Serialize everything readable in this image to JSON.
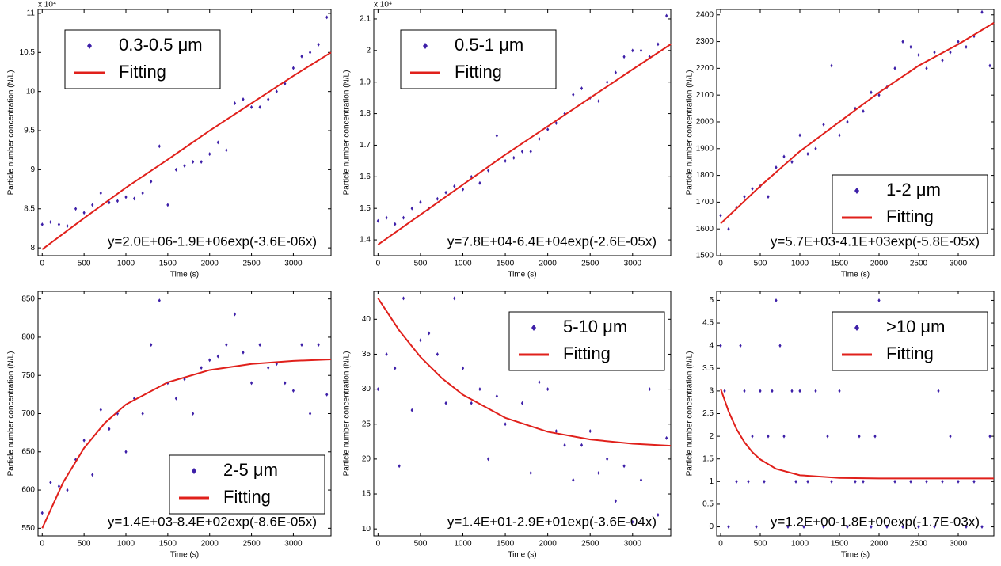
{
  "chart_data": [
    {
      "type": "scatter",
      "xlabel": "Time (s)",
      "ylabel": "Particle number concentration (N/L)",
      "multiplier": "x 10⁴",
      "annotation": "y=2.0E+06-1.9E+06exp(-3.6E-06x)",
      "legend": "upper left",
      "xlim": [
        -50,
        3450
      ],
      "ylim": [
        7.9,
        11.05
      ],
      "xticks": [
        0,
        500,
        1000,
        1500,
        2000,
        2500,
        3000
      ],
      "yticks": [
        8,
        8.5,
        9,
        9.5,
        10,
        10.5,
        11
      ],
      "series": [
        {
          "name": "0.3-0.5 μm",
          "type": "scatter",
          "color": "#3d1fa8",
          "x": [
            0,
            100,
            200,
            300,
            400,
            500,
            600,
            700,
            800,
            900,
            1000,
            1100,
            1200,
            1300,
            1400,
            1500,
            1600,
            1700,
            1800,
            1900,
            2000,
            2100,
            2200,
            2300,
            2400,
            2500,
            2600,
            2700,
            2800,
            2900,
            3000,
            3100,
            3200,
            3300,
            3400
          ],
          "values": [
            8.3,
            8.33,
            8.3,
            8.28,
            8.5,
            8.45,
            8.55,
            8.7,
            8.58,
            8.6,
            8.65,
            8.63,
            8.7,
            8.85,
            9.3,
            8.55,
            9.0,
            9.05,
            9.1,
            9.1,
            9.2,
            9.35,
            9.25,
            9.85,
            9.9,
            9.8,
            9.8,
            9.9,
            10.0,
            10.1,
            10.3,
            10.45,
            10.5,
            10.6,
            10.95
          ]
        },
        {
          "name": "Fitting",
          "type": "line",
          "color": "#e0201b",
          "x": [
            0,
            500,
            1000,
            1500,
            2000,
            2500,
            3000,
            3450
          ],
          "values": [
            7.98,
            8.38,
            8.77,
            9.13,
            9.5,
            9.85,
            10.2,
            10.5
          ]
        }
      ]
    },
    {
      "type": "scatter",
      "xlabel": "Time (s)",
      "ylabel": "Particle number concentration (N/L)",
      "multiplier": "x 10⁴",
      "annotation": "y=7.8E+04-6.4E+04exp(-2.6E-05x)",
      "legend": "upper left",
      "xlim": [
        -50,
        3450
      ],
      "ylim": [
        1.35,
        2.13
      ],
      "xticks": [
        0,
        500,
        1000,
        1500,
        2000,
        2500,
        3000
      ],
      "yticks": [
        1.4,
        1.5,
        1.6,
        1.7,
        1.8,
        1.9,
        2,
        2.1
      ],
      "series": [
        {
          "name": "0.5-1 μm",
          "type": "scatter",
          "color": "#3d1fa8",
          "x": [
            0,
            100,
            200,
            300,
            400,
            500,
            600,
            700,
            800,
            900,
            1000,
            1100,
            1200,
            1300,
            1400,
            1500,
            1600,
            1700,
            1800,
            1900,
            2000,
            2100,
            2200,
            2300,
            2400,
            2500,
            2600,
            2700,
            2800,
            2900,
            3000,
            3100,
            3200,
            3300,
            3400
          ],
          "values": [
            1.46,
            1.47,
            1.45,
            1.47,
            1.5,
            1.52,
            1.5,
            1.53,
            1.55,
            1.57,
            1.56,
            1.6,
            1.58,
            1.62,
            1.73,
            1.65,
            1.66,
            1.68,
            1.68,
            1.72,
            1.75,
            1.77,
            1.8,
            1.86,
            1.88,
            1.85,
            1.84,
            1.9,
            1.93,
            1.98,
            2.0,
            2.0,
            1.98,
            2.02,
            2.11
          ]
        },
        {
          "name": "Fitting",
          "type": "line",
          "color": "#e0201b",
          "x": [
            0,
            500,
            1000,
            1500,
            2000,
            2500,
            3000,
            3450
          ],
          "values": [
            1.385,
            1.48,
            1.575,
            1.67,
            1.76,
            1.85,
            1.94,
            2.02
          ]
        }
      ]
    },
    {
      "type": "scatter",
      "xlabel": "Time (s)",
      "ylabel": "Particle number concentration (N/L)",
      "annotation": "y=5.7E+03-4.1E+03exp(-5.8E-05x)",
      "legend": "lower right",
      "xlim": [
        -50,
        3450
      ],
      "ylim": [
        1500,
        2420
      ],
      "xticks": [
        0,
        500,
        1000,
        1500,
        2000,
        2500,
        3000
      ],
      "yticks": [
        1500,
        1600,
        1700,
        1800,
        1900,
        2000,
        2100,
        2200,
        2300,
        2400
      ],
      "series": [
        {
          "name": "1-2 μm",
          "type": "scatter",
          "color": "#3d1fa8",
          "x": [
            0,
            100,
            200,
            300,
            400,
            500,
            600,
            700,
            800,
            900,
            1000,
            1100,
            1200,
            1300,
            1400,
            1500,
            1600,
            1700,
            1800,
            1900,
            2000,
            2100,
            2200,
            2300,
            2400,
            2500,
            2600,
            2700,
            2800,
            2900,
            3000,
            3100,
            3200,
            3300,
            3400
          ],
          "values": [
            1650,
            1600,
            1680,
            1720,
            1750,
            1760,
            1720,
            1830,
            1870,
            1850,
            1950,
            1880,
            1900,
            1990,
            2210,
            1950,
            2000,
            2050,
            2040,
            2110,
            2100,
            2130,
            2200,
            2300,
            2280,
            2250,
            2200,
            2260,
            2230,
            2260,
            2300,
            2280,
            2320,
            2410,
            2210
          ]
        },
        {
          "name": "Fitting",
          "type": "line",
          "color": "#e0201b",
          "x": [
            0,
            500,
            1000,
            1500,
            2000,
            2500,
            3000,
            3450
          ],
          "values": [
            1620,
            1760,
            1890,
            2000,
            2110,
            2210,
            2290,
            2370
          ]
        }
      ]
    },
    {
      "type": "scatter",
      "xlabel": "Time (s)",
      "ylabel": "Particle number concentration (N/L)",
      "annotation": "y=1.4E+03-8.4E+02exp(-8.6E-05x)",
      "legend": "lower right",
      "xlim": [
        -50,
        3450
      ],
      "ylim": [
        540,
        860
      ],
      "xticks": [
        0,
        500,
        1000,
        1500,
        2000,
        2500,
        3000
      ],
      "yticks": [
        550,
        600,
        650,
        700,
        750,
        800,
        850
      ],
      "series": [
        {
          "name": "2-5 μm",
          "type": "scatter",
          "color": "#3d1fa8",
          "x": [
            0,
            100,
            200,
            300,
            400,
            500,
            600,
            700,
            800,
            900,
            1000,
            1100,
            1200,
            1300,
            1400,
            1500,
            1600,
            1700,
            1800,
            1900,
            2000,
            2100,
            2200,
            2300,
            2400,
            2500,
            2600,
            2700,
            2800,
            2900,
            3000,
            3100,
            3200,
            3300,
            3400
          ],
          "values": [
            570,
            610,
            605,
            600,
            640,
            665,
            620,
            705,
            680,
            700,
            650,
            720,
            700,
            790,
            848,
            740,
            720,
            745,
            700,
            760,
            770,
            775,
            790,
            830,
            780,
            740,
            790,
            760,
            765,
            740,
            730,
            790,
            700,
            790,
            725
          ]
        },
        {
          "name": "Fitting",
          "type": "line",
          "color": "#e0201b",
          "x": [
            0,
            250,
            500,
            750,
            1000,
            1500,
            2000,
            2500,
            3000,
            3450
          ],
          "values": [
            550,
            610,
            655,
            688,
            712,
            741,
            757,
            765,
            769,
            771
          ]
        }
      ]
    },
    {
      "type": "scatter",
      "xlabel": "Time (s)",
      "ylabel": "Particle number concentration (N/L)",
      "annotation": "y=1.4E+01-2.9E+01exp(-3.6E-04x)",
      "legend": "upper right",
      "xlim": [
        -50,
        3450
      ],
      "ylim": [
        9,
        44
      ],
      "xticks": [
        0,
        500,
        1000,
        1500,
        2000,
        2500,
        3000
      ],
      "yticks": [
        10,
        15,
        20,
        25,
        30,
        35,
        40
      ],
      "series": [
        {
          "name": "5-10 μm",
          "type": "scatter",
          "color": "#3d1fa8",
          "x": [
            0,
            100,
            200,
            250,
            300,
            400,
            500,
            600,
            700,
            800,
            900,
            1000,
            1100,
            1200,
            1300,
            1400,
            1500,
            1600,
            1700,
            1800,
            1900,
            2000,
            2100,
            2200,
            2300,
            2400,
            2500,
            2600,
            2700,
            2800,
            2900,
            3000,
            3100,
            3200,
            3300,
            3400
          ],
          "values": [
            30,
            35,
            33,
            19,
            43,
            27,
            37,
            38,
            35,
            28,
            43,
            33,
            28,
            30,
            20,
            29,
            25,
            35,
            28,
            18,
            31,
            30,
            24,
            22,
            17,
            22,
            24,
            18,
            20,
            14,
            19,
            11,
            17,
            30,
            12,
            23
          ]
        },
        {
          "name": "Fitting",
          "type": "line",
          "color": "#e0201b",
          "x": [
            0,
            250,
            500,
            750,
            1000,
            1500,
            2000,
            2500,
            3000,
            3450
          ],
          "values": [
            43,
            38.4,
            34.6,
            31.6,
            29.2,
            25.9,
            23.9,
            22.8,
            22.2,
            21.9
          ]
        }
      ]
    },
    {
      "type": "scatter",
      "xlabel": "Time (s)",
      "ylabel": "Particle number concentration (N/L)",
      "annotation": "y=1.2E+00-1.8E+00exp(-1.7E-03x)",
      "legend": "upper right",
      "xlim": [
        -50,
        3450
      ],
      "ylim": [
        -0.2,
        5.2
      ],
      "xticks": [
        0,
        500,
        1000,
        1500,
        2000,
        2500,
        3000
      ],
      "yticks": [
        0,
        0.5,
        1,
        1.5,
        2,
        2.5,
        3,
        3.5,
        4,
        4.5,
        5
      ],
      "series": [
        {
          "name": ">10 μm",
          "type": "scatter",
          "color": "#3d1fa8",
          "x": [
            0,
            50,
            100,
            200,
            250,
            300,
            350,
            400,
            450,
            500,
            550,
            600,
            650,
            700,
            750,
            800,
            850,
            900,
            950,
            1000,
            1050,
            1100,
            1200,
            1300,
            1350,
            1400,
            1500,
            1600,
            1700,
            1750,
            1800,
            1900,
            1950,
            2000,
            2100,
            2200,
            2300,
            2400,
            2500,
            2600,
            2700,
            2750,
            2800,
            2900,
            3000,
            3100,
            3200,
            3300,
            3400
          ],
          "values": [
            4,
            3,
            0,
            1,
            4,
            3,
            1,
            2,
            0,
            3,
            1,
            2,
            3,
            5,
            4,
            2,
            0,
            3,
            1,
            3,
            0,
            1,
            3,
            0,
            2,
            1,
            3,
            0,
            1,
            2,
            1,
            0,
            2,
            5,
            0,
            1,
            0,
            1,
            0,
            1,
            0,
            3,
            1,
            2,
            1,
            0,
            1,
            0,
            2
          ]
        },
        {
          "name": "Fitting",
          "type": "line",
          "color": "#e0201b",
          "x": [
            0,
            100,
            200,
            300,
            400,
            500,
            700,
            1000,
            1500,
            2000,
            3450
          ],
          "values": [
            3.05,
            2.55,
            2.16,
            1.87,
            1.65,
            1.49,
            1.28,
            1.14,
            1.08,
            1.07,
            1.07
          ]
        }
      ]
    }
  ]
}
